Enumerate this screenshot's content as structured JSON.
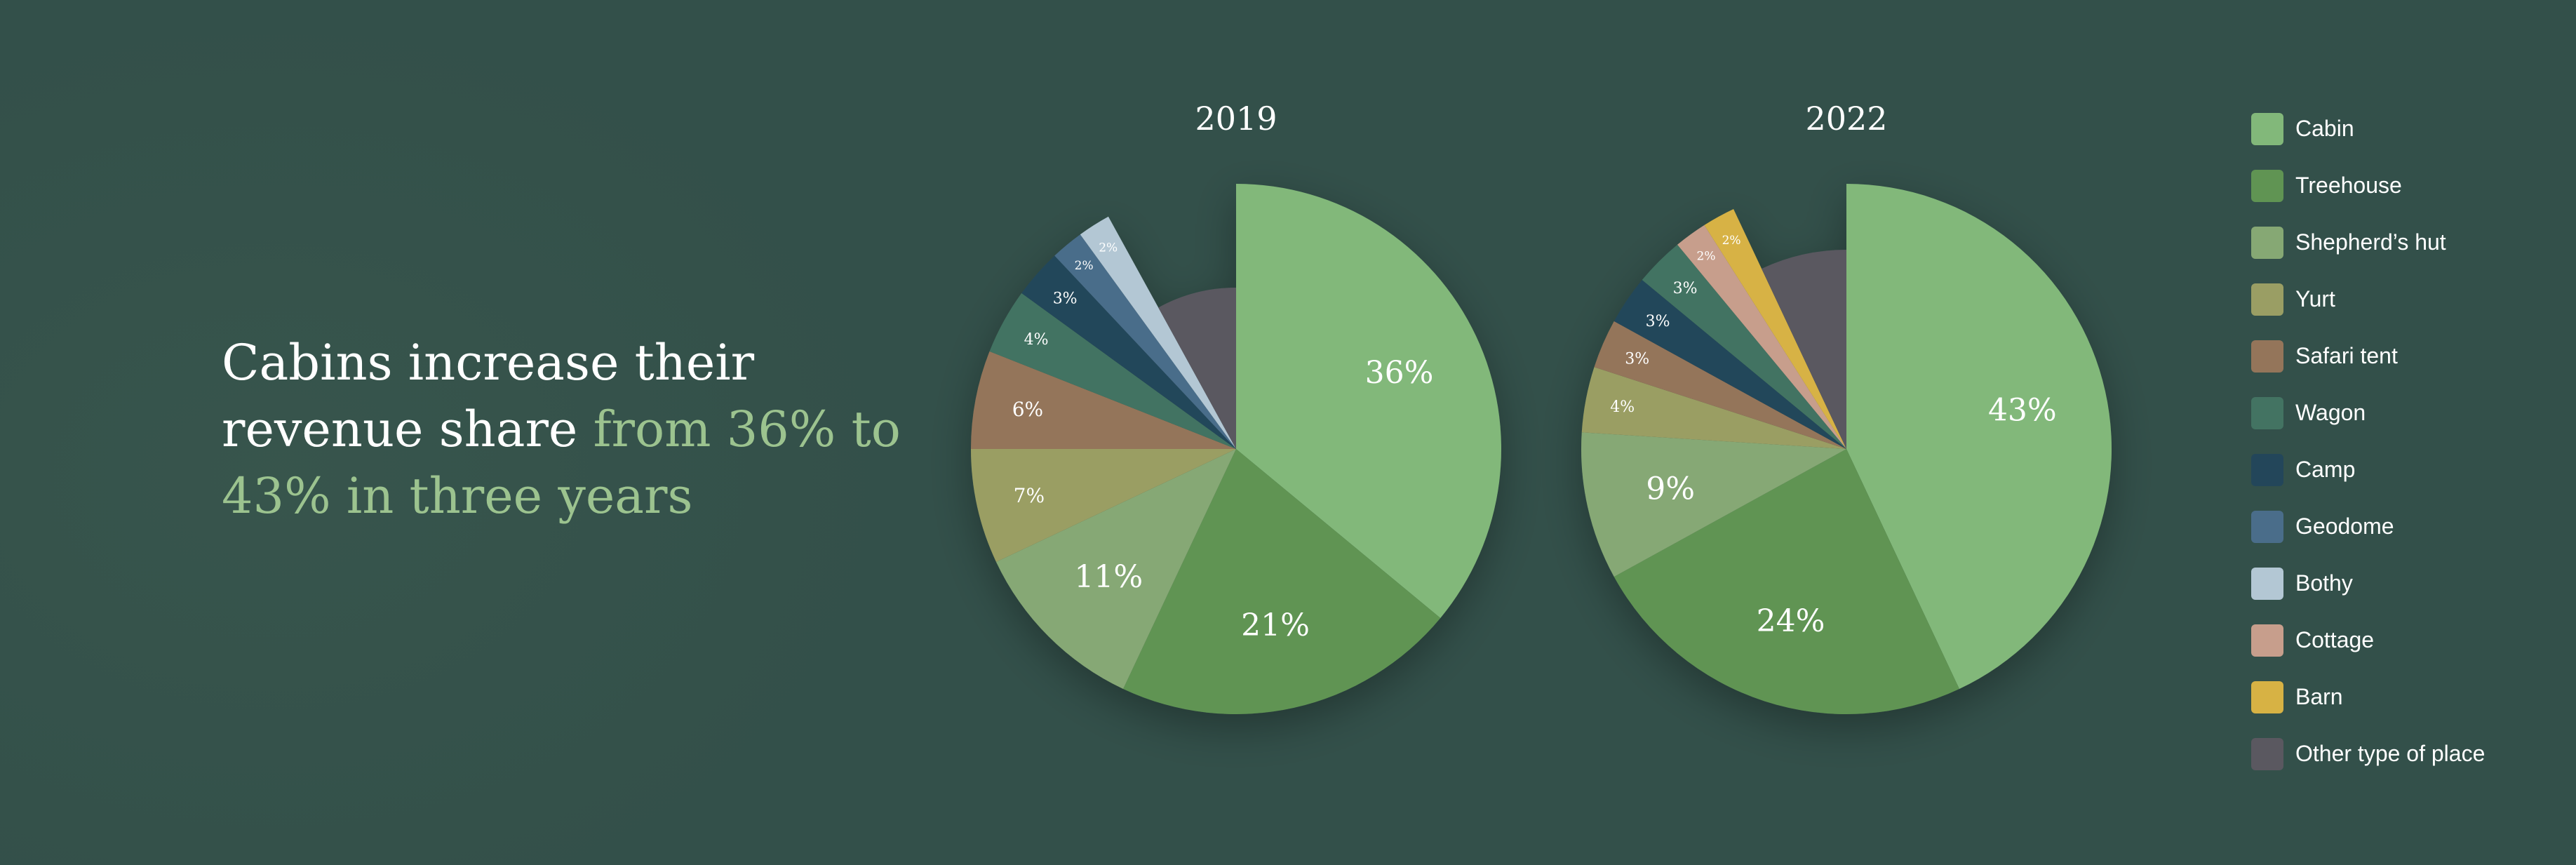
{
  "headline": {
    "part1": "Cabins increase their revenue share ",
    "part2": "from 36% to 43% in three years"
  },
  "chart_data": [
    {
      "type": "pie",
      "title": "2019",
      "slices": [
        {
          "name": "Cabin",
          "value": 36,
          "label": "36%"
        },
        {
          "name": "Treehouse",
          "value": 21,
          "label": "21%"
        },
        {
          "name": "Shepherd’s hut",
          "value": 11,
          "label": "11%"
        },
        {
          "name": "Yurt",
          "value": 7,
          "label": "7%"
        },
        {
          "name": "Safari tent",
          "value": 6,
          "label": "6%"
        },
        {
          "name": "Wagon",
          "value": 4,
          "label": "4%"
        },
        {
          "name": "Camp",
          "value": 3,
          "label": "3%"
        },
        {
          "name": "Geodome",
          "value": 2,
          "label": "2%"
        },
        {
          "name": "Bothy",
          "value": 2,
          "label": "2%"
        },
        {
          "name": "Other type of place",
          "value": 8,
          "label": ""
        }
      ]
    },
    {
      "type": "pie",
      "title": "2022",
      "slices": [
        {
          "name": "Cabin",
          "value": 43,
          "label": "43%"
        },
        {
          "name": "Treehouse",
          "value": 24,
          "label": "24%"
        },
        {
          "name": "Shepherd’s hut",
          "value": 9,
          "label": "9%"
        },
        {
          "name": "Yurt",
          "value": 4,
          "label": "4%"
        },
        {
          "name": "Safari tent",
          "value": 3,
          "label": "3%"
        },
        {
          "name": "Camp",
          "value": 3,
          "label": "3%"
        },
        {
          "name": "Wagon",
          "value": 3,
          "label": "3%"
        },
        {
          "name": "Cottage",
          "value": 2,
          "label": "2%"
        },
        {
          "name": "Barn",
          "value": 2,
          "label": "2%"
        },
        {
          "name": "Other type of place",
          "value": 7,
          "label": ""
        }
      ]
    }
  ],
  "legend": [
    {
      "label": "Cabin",
      "color": "#82b87a"
    },
    {
      "label": "Treehouse",
      "color": "#609453"
    },
    {
      "label": "Shepherd’s hut",
      "color": "#86a874"
    },
    {
      "label": "Yurt",
      "color": "#9a9e64"
    },
    {
      "label": "Safari tent",
      "color": "#94755a"
    },
    {
      "label": "Wagon",
      "color": "#437362"
    },
    {
      "label": "Camp",
      "color": "#23465a"
    },
    {
      "label": "Geodome",
      "color": "#4a6d8a"
    },
    {
      "label": "Bothy",
      "color": "#b3c7d4"
    },
    {
      "label": "Cottage",
      "color": "#c79e8c"
    },
    {
      "label": "Barn",
      "color": "#d7b244"
    },
    {
      "label": "Other type of place",
      "color": "#5a5860"
    }
  ]
}
